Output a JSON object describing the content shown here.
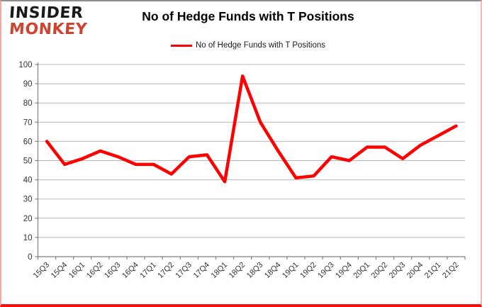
{
  "header": {
    "logo_line1": "INSIDER",
    "logo_line2": "MONKEY",
    "title": "No of Hedge Funds with T Positions"
  },
  "legend": {
    "label": "No of Hedge Funds with T Positions"
  },
  "chart_data": {
    "type": "line",
    "title": "No of Hedge Funds with T Positions",
    "categories": [
      "15Q3",
      "15Q4",
      "16Q1",
      "16Q2",
      "16Q3",
      "16Q4",
      "17Q1",
      "17Q2",
      "17Q3",
      "17Q4",
      "18Q1",
      "18Q2",
      "18Q3",
      "18Q4",
      "19Q1",
      "19Q2",
      "19Q3",
      "19Q4",
      "20Q1",
      "20Q2",
      "20Q3",
      "20Q4",
      "21Q1",
      "21Q2"
    ],
    "series": [
      {
        "name": "No of Hedge Funds with T Positions",
        "color": "#fe0000",
        "values": [
          60,
          48,
          51,
          55,
          52,
          48,
          48,
          43,
          52,
          53,
          39,
          94,
          70,
          55,
          41,
          42,
          52,
          50,
          57,
          57,
          51,
          58,
          63,
          68
        ]
      }
    ],
    "xlabel": "",
    "ylabel": "",
    "ylim": [
      0,
      100
    ],
    "ytick_step": 10,
    "grid": true,
    "legend_position": "top-center"
  },
  "colors": {
    "line": "#fe0000",
    "gridline": "#b8b8b8",
    "axis": "#808080",
    "tick_label": "#333333",
    "logo_black": "#1a1a1a",
    "logo_red": "#cf4430",
    "border_bottom": "#fb0d0c"
  }
}
